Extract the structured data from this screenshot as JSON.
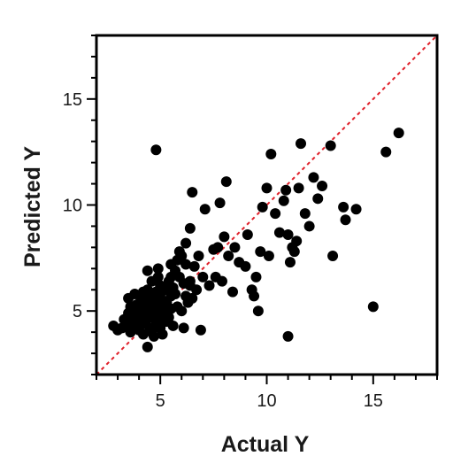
{
  "chart_data": {
    "type": "scatter",
    "title": "",
    "xlabel": "Actual Y",
    "ylabel": "Predicted Y",
    "xlim": [
      2,
      18
    ],
    "ylim": [
      2,
      18
    ],
    "x_ticks": [
      5,
      10,
      15
    ],
    "y_ticks": [
      5,
      10,
      15
    ],
    "x_minor_step": 1,
    "y_minor_step": 1,
    "grid": false,
    "legend": "none",
    "marker_color": "#000000",
    "reference_line": {
      "style": "dashed",
      "color": "#e0202a",
      "from": [
        2,
        2
      ],
      "to": [
        18,
        18
      ]
    },
    "points": [
      [
        2.8,
        4.3
      ],
      [
        3.0,
        4.1
      ],
      [
        3.2,
        4.2
      ],
      [
        3.3,
        4.6
      ],
      [
        3.5,
        4.9
      ],
      [
        3.5,
        5.6
      ],
      [
        3.6,
        5.2
      ],
      [
        3.7,
        4.7
      ],
      [
        3.7,
        4.3
      ],
      [
        3.8,
        5.0
      ],
      [
        3.8,
        5.8
      ],
      [
        3.9,
        4.4
      ],
      [
        3.9,
        5.3
      ],
      [
        4.0,
        4.9
      ],
      [
        4.0,
        4.1
      ],
      [
        4.1,
        5.6
      ],
      [
        4.1,
        4.6
      ],
      [
        4.2,
        5.1
      ],
      [
        4.2,
        3.9
      ],
      [
        4.2,
        5.9
      ],
      [
        4.3,
        4.4
      ],
      [
        4.3,
        5.4
      ],
      [
        4.4,
        4.8
      ],
      [
        4.4,
        3.3
      ],
      [
        4.4,
        6.0
      ],
      [
        4.5,
        5.2
      ],
      [
        4.5,
        4.2
      ],
      [
        4.5,
        5.7
      ],
      [
        4.6,
        4.7
      ],
      [
        4.6,
        6.4
      ],
      [
        4.6,
        4.0
      ],
      [
        4.7,
        5.5
      ],
      [
        4.7,
        4.9
      ],
      [
        4.7,
        3.8
      ],
      [
        4.8,
        5.9
      ],
      [
        4.8,
        4.4
      ],
      [
        4.8,
        5.1
      ],
      [
        4.9,
        6.6
      ],
      [
        4.9,
        4.6
      ],
      [
        4.9,
        5.3
      ],
      [
        5.0,
        4.2
      ],
      [
        5.0,
        5.8
      ],
      [
        5.0,
        6.2
      ],
      [
        5.0,
        4.8
      ],
      [
        5.1,
        5.5
      ],
      [
        5.1,
        3.9
      ],
      [
        5.2,
        5.0
      ],
      [
        5.2,
        6.0
      ],
      [
        5.3,
        4.5
      ],
      [
        5.3,
        5.4
      ],
      [
        5.4,
        6.4
      ],
      [
        5.4,
        4.7
      ],
      [
        5.5,
        5.7
      ],
      [
        5.5,
        5.1
      ],
      [
        5.6,
        6.1
      ],
      [
        5.6,
        4.3
      ],
      [
        5.7,
        5.8
      ],
      [
        5.8,
        5.2
      ],
      [
        5.9,
        6.6
      ],
      [
        6.0,
        5.0
      ],
      [
        6.1,
        6.3
      ],
      [
        6.1,
        4.2
      ],
      [
        6.2,
        5.7
      ],
      [
        6.3,
        5.4
      ],
      [
        6.4,
        6.2
      ],
      [
        6.5,
        5.6
      ],
      [
        6.6,
        7.1
      ],
      [
        6.7,
        6.0
      ],
      [
        6.2,
        8.2
      ],
      [
        6.4,
        8.9
      ],
      [
        6.5,
        10.6
      ],
      [
        5.9,
        7.8
      ],
      [
        5.8,
        7.4
      ],
      [
        5.5,
        7.2
      ],
      [
        6.0,
        7.6
      ],
      [
        6.2,
        7.2
      ],
      [
        6.8,
        7.6
      ],
      [
        7.0,
        6.6
      ],
      [
        7.1,
        9.8
      ],
      [
        7.3,
        6.2
      ],
      [
        7.5,
        7.9
      ],
      [
        7.6,
        6.6
      ],
      [
        7.7,
        8.0
      ],
      [
        7.8,
        10.1
      ],
      [
        7.9,
        6.4
      ],
      [
        8.0,
        8.5
      ],
      [
        8.1,
        11.1
      ],
      [
        8.2,
        7.6
      ],
      [
        8.4,
        5.9
      ],
      [
        8.5,
        8.0
      ],
      [
        8.7,
        7.3
      ],
      [
        9.0,
        7.1
      ],
      [
        9.1,
        8.6
      ],
      [
        9.3,
        6.0
      ],
      [
        9.4,
        5.7
      ],
      [
        9.6,
        5.0
      ],
      [
        9.5,
        6.6
      ],
      [
        9.7,
        7.8
      ],
      [
        9.8,
        9.9
      ],
      [
        10.0,
        10.8
      ],
      [
        10.2,
        12.4
      ],
      [
        10.1,
        7.6
      ],
      [
        10.4,
        9.6
      ],
      [
        10.6,
        8.7
      ],
      [
        10.8,
        10.2
      ],
      [
        10.9,
        10.7
      ],
      [
        11.0,
        8.6
      ],
      [
        11.1,
        7.3
      ],
      [
        11.2,
        8.0
      ],
      [
        11.3,
        7.8
      ],
      [
        11.4,
        8.3
      ],
      [
        11.5,
        10.8
      ],
      [
        11.6,
        12.9
      ],
      [
        11.8,
        9.6
      ],
      [
        12.0,
        9.0
      ],
      [
        12.2,
        11.3
      ],
      [
        12.4,
        10.3
      ],
      [
        12.6,
        10.9
      ],
      [
        13.0,
        12.8
      ],
      [
        13.1,
        7.6
      ],
      [
        13.6,
        9.9
      ],
      [
        13.7,
        9.3
      ],
      [
        14.2,
        9.8
      ],
      [
        15.0,
        5.2
      ],
      [
        15.6,
        12.5
      ],
      [
        16.2,
        13.4
      ],
      [
        4.8,
        12.6
      ],
      [
        11.0,
        3.8
      ],
      [
        6.4,
        6.4
      ],
      [
        6.9,
        4.1
      ],
      [
        5.0,
        5.5
      ],
      [
        5.2,
        4.6
      ],
      [
        4.6,
        5.6
      ],
      [
        4.3,
        5.0
      ],
      [
        3.6,
        4.0
      ],
      [
        3.4,
        4.4
      ],
      [
        5.5,
        6.6
      ],
      [
        4.9,
        7.0
      ],
      [
        4.4,
        6.9
      ],
      [
        5.7,
        6.9
      ]
    ]
  }
}
